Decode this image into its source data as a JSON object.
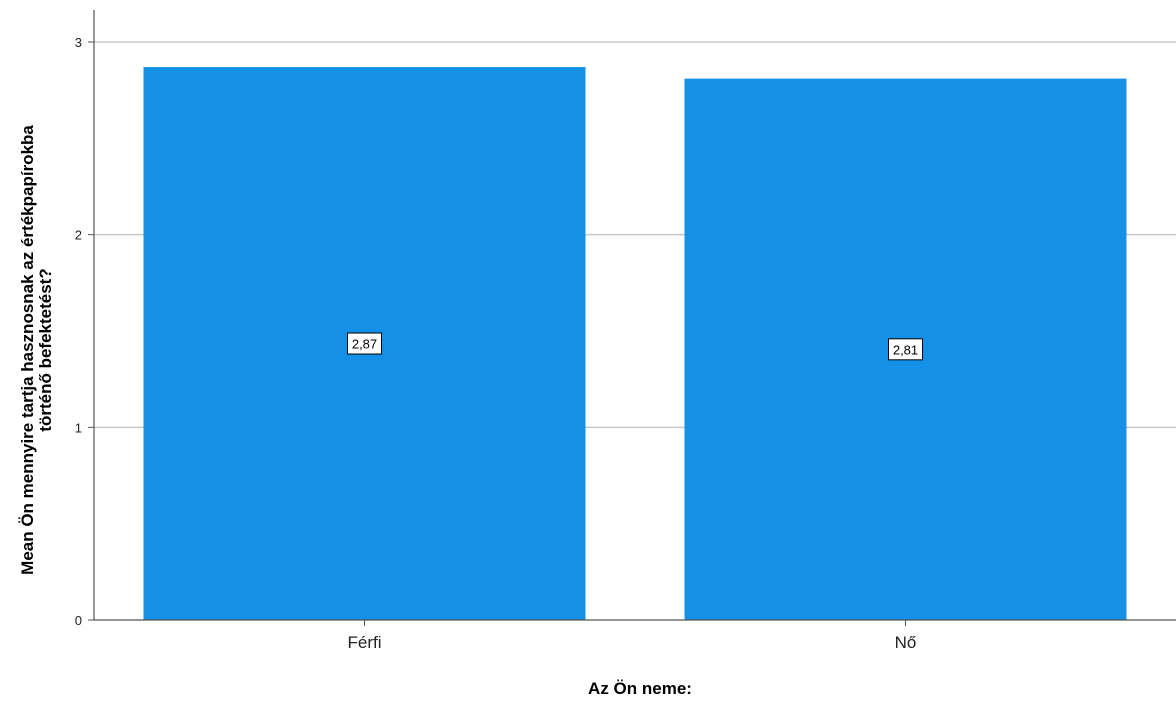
{
  "chart_data": {
    "type": "bar",
    "categories": [
      "Férfi",
      "Nő"
    ],
    "values": [
      2.87,
      2.81
    ],
    "data_labels": [
      "2,87",
      "2,81"
    ],
    "xlabel": "Az Ön neme:",
    "ylabel_lines": [
      "Mean Ön mennyire tartja hasznosnak az értékpapírokba",
      "történő befektetést?"
    ],
    "ylim": [
      0,
      3
    ],
    "yticks": [
      0,
      1,
      2,
      3
    ],
    "grid": true,
    "bar_color": "#1490e6",
    "grid_color": "#c8c8c8",
    "axis_color": "#555555"
  }
}
